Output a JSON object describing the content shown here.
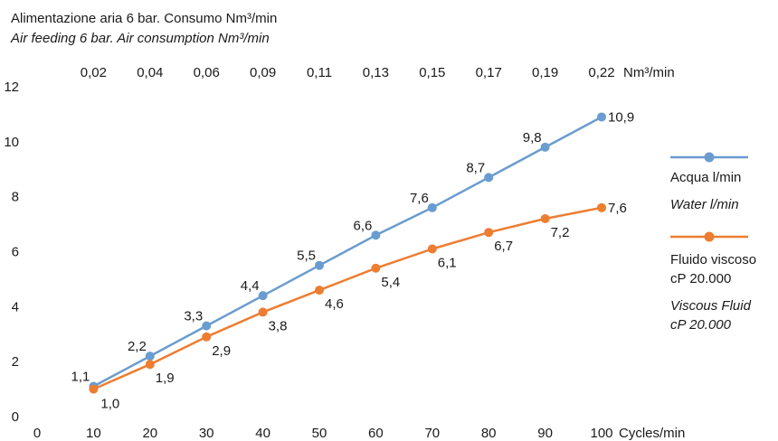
{
  "chart_data": {
    "type": "line",
    "title": "Alimentazione aria 6 bar. Consumo Nm³/min",
    "subtitle": "Air feeding 6 bar. Air consumption Nm³/min",
    "x": [
      10,
      20,
      30,
      40,
      50,
      60,
      70,
      80,
      90,
      100
    ],
    "xlim": [
      0,
      100
    ],
    "ylim": [
      0,
      12
    ],
    "x_ticks": [
      0,
      10,
      20,
      30,
      40,
      50,
      60,
      70,
      80,
      90,
      100
    ],
    "y_ticks": [
      0,
      2,
      4,
      6,
      8,
      10,
      12
    ],
    "x_unit_label": "Cycles/min",
    "top_axis": {
      "labels": [
        "0,02",
        "0,04",
        "0,06",
        "0,09",
        "0,11",
        "0,13",
        "0,15",
        "0,17",
        "0,19",
        "0,22"
      ],
      "unit": "Nm³/min"
    },
    "grid": false,
    "legend_position": "right",
    "series": [
      {
        "name": "Acqua l/min",
        "name_alt": "Water l/min",
        "color": "#6a9ccf",
        "values": [
          1.1,
          2.2,
          3.3,
          4.4,
          5.5,
          6.6,
          7.6,
          8.7,
          9.8,
          10.9
        ],
        "labels": [
          "1,1",
          "2,2",
          "3,3",
          "4,4",
          "5,5",
          "6,6",
          "7,6",
          "8,7",
          "9,8",
          "10,9"
        ]
      },
      {
        "name": "Fluido viscoso cP 20.000",
        "name_alt": "Viscous Fluid cP 20.000",
        "color": "#ed7d31",
        "values": [
          1.0,
          1.9,
          2.9,
          3.8,
          4.6,
          5.4,
          6.1,
          6.7,
          7.2,
          7.6
        ],
        "labels": [
          "1,0",
          "1,9",
          "2,9",
          "3,8",
          "4,6",
          "5,4",
          "6,1",
          "6,7",
          "7,2",
          "7,6"
        ]
      }
    ]
  },
  "legend": {
    "s1_line1": "Acqua l/min",
    "s1_line2": "Water l/min",
    "s2_line1": "Fluido viscoso",
    "s2_line2": "cP 20.000",
    "s2_line3": "Viscous Fluid",
    "s2_line4": "cP 20.000"
  }
}
